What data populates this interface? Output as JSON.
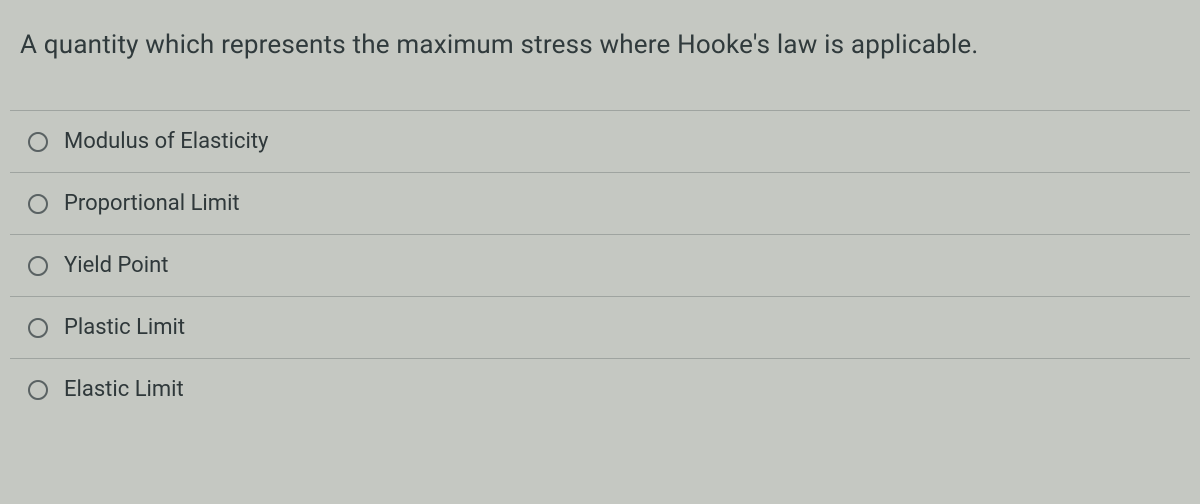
{
  "question": {
    "text": "A quantity which represents the maximum stress where Hooke's law is applicable."
  },
  "options": [
    {
      "label": "Modulus of Elasticity"
    },
    {
      "label": "Proportional Limit"
    },
    {
      "label": "Yield Point"
    },
    {
      "label": "Plastic Limit"
    },
    {
      "label": "Elastic Limit"
    }
  ],
  "colors": {
    "background": "#c5c8c2",
    "text": "#2d3638",
    "divider": "#9fa4a0",
    "radio_border": "#5a6263"
  }
}
